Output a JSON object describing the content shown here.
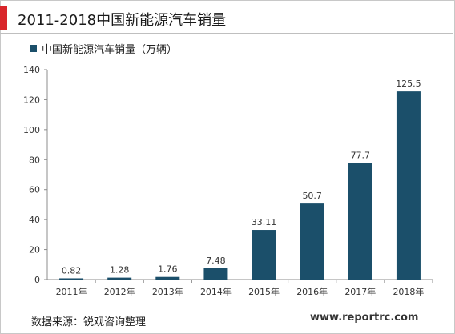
{
  "header": {
    "title": "2011-2018中国新能源汽车销量"
  },
  "footer": {
    "source": "数据来源：锐观咨询整理",
    "website": "www.reportrc.com"
  },
  "colors": {
    "accent": "#d9262b",
    "bar": "#1b4f6a"
  },
  "chart_data": {
    "type": "bar",
    "title": "2011-2018中国新能源汽车销量",
    "categories": [
      "2011年",
      "2012年",
      "2013年",
      "2014年",
      "2015年",
      "2016年",
      "2017年",
      "2018年"
    ],
    "series": [
      {
        "name": "中国新能源汽车销量（万辆）",
        "values": [
          0.82,
          1.28,
          1.76,
          7.48,
          33.11,
          50.7,
          77.7,
          125.5
        ],
        "labels": [
          "0.82",
          "1.28",
          "1.76",
          "7.48",
          "33.11",
          "50.7",
          "77.7",
          "125.5"
        ]
      }
    ],
    "xlabel": "",
    "ylabel": "",
    "ylim": [
      0,
      140
    ],
    "yticks": [
      0,
      20,
      40,
      60,
      80,
      100,
      120,
      140
    ],
    "grid": false,
    "legend_position": "top-left"
  }
}
